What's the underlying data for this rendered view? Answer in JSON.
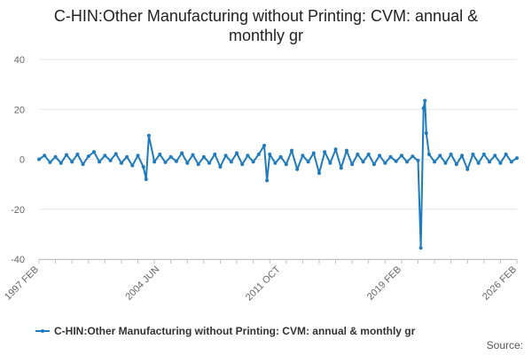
{
  "chart_data": {
    "type": "line",
    "title_lines": [
      "C-HIN:Other Manufacturing without Printing: CVM: annual &",
      "monthly gr"
    ],
    "x_start": "1997 FEB",
    "x_end": "2026 FEB",
    "x_tick_labels": [
      "1997 FEB",
      "2004 JUN",
      "2011 OCT",
      "2019 FEB",
      "2026 FEB"
    ],
    "y_ticks": [
      40,
      20,
      0,
      -20,
      -40
    ],
    "ylim": [
      -40,
      40
    ],
    "grid": true,
    "legend_position": "bottom-left",
    "series": [
      {
        "name": "C-HIN:Other Manufacturing without Printing: CVM: annual & monthly gr",
        "color": "#1f7bbd",
        "points": [
          [
            "1997 FEB",
            0
          ],
          [
            "1997 JUN",
            1.5
          ],
          [
            "1997 OCT",
            -1.2
          ],
          [
            "1998 FEB",
            1
          ],
          [
            "1998 JUN",
            -1.5
          ],
          [
            "1998 OCT",
            1.8
          ],
          [
            "1999 FEB",
            -1
          ],
          [
            "1999 JUN",
            2
          ],
          [
            "1999 OCT",
            -2
          ],
          [
            "2000 FEB",
            1.2
          ],
          [
            "2000 JUN",
            3
          ],
          [
            "2000 OCT",
            -1
          ],
          [
            "2001 FEB",
            1.5
          ],
          [
            "2001 JUN",
            -0.5
          ],
          [
            "2001 OCT",
            2.2
          ],
          [
            "2002 FEB",
            -1.5
          ],
          [
            "2002 JUN",
            1
          ],
          [
            "2002 OCT",
            -2.5
          ],
          [
            "2003 FEB",
            1.5
          ],
          [
            "2003 JUN",
            -3
          ],
          [
            "2003 AUG",
            -8
          ],
          [
            "2003 OCT",
            9.5
          ],
          [
            "2004 FEB",
            -1
          ],
          [
            "2004 JUN",
            2
          ],
          [
            "2004 OCT",
            -1.2
          ],
          [
            "2005 FEB",
            1
          ],
          [
            "2005 JUN",
            -0.8
          ],
          [
            "2005 OCT",
            2.5
          ],
          [
            "2006 FEB",
            -1.5
          ],
          [
            "2006 JUN",
            1.8
          ],
          [
            "2006 OCT",
            -2
          ],
          [
            "2007 FEB",
            1
          ],
          [
            "2007 JUN",
            -1.5
          ],
          [
            "2007 OCT",
            2
          ],
          [
            "2008 FEB",
            -3
          ],
          [
            "2008 JUN",
            1.5
          ],
          [
            "2008 OCT",
            -1
          ],
          [
            "2009 FEB",
            2.5
          ],
          [
            "2009 JUN",
            -2
          ],
          [
            "2009 OCT",
            1.5
          ],
          [
            "2010 FEB",
            -1
          ],
          [
            "2010 JUN",
            2
          ],
          [
            "2010 OCT",
            5.5
          ],
          [
            "2010 DEC",
            -8.5
          ],
          [
            "2011 FEB",
            2
          ],
          [
            "2011 JUN",
            -1.5
          ],
          [
            "2011 OCT",
            1
          ],
          [
            "2012 FEB",
            -2
          ],
          [
            "2012 JUN",
            3.5
          ],
          [
            "2012 OCT",
            -4
          ],
          [
            "2013 FEB",
            1.5
          ],
          [
            "2013 JUN",
            -1
          ],
          [
            "2013 OCT",
            2.5
          ],
          [
            "2014 FEB",
            -5.5
          ],
          [
            "2014 JUN",
            3
          ],
          [
            "2014 OCT",
            -1.5
          ],
          [
            "2015 FEB",
            4
          ],
          [
            "2015 JUN",
            -3.5
          ],
          [
            "2015 OCT",
            3.5
          ],
          [
            "2016 FEB",
            -2
          ],
          [
            "2016 JUN",
            2
          ],
          [
            "2016 OCT",
            -1
          ],
          [
            "2017 FEB",
            2
          ],
          [
            "2017 JUN",
            -2
          ],
          [
            "2017 OCT",
            1.5
          ],
          [
            "2018 FEB",
            -1.5
          ],
          [
            "2018 JUN",
            1
          ],
          [
            "2018 OCT",
            -0.8
          ],
          [
            "2019 FEB",
            1.5
          ],
          [
            "2019 JUN",
            -1
          ],
          [
            "2019 OCT",
            1.2
          ],
          [
            "2020 FEB",
            -0.5
          ],
          [
            "2020 APR",
            -35.5
          ],
          [
            "2020 JUN",
            20.5
          ],
          [
            "2020 JUL",
            23.5
          ],
          [
            "2020 AUG",
            10.5
          ],
          [
            "2020 OCT",
            2
          ],
          [
            "2021 FEB",
            -1
          ],
          [
            "2021 JUN",
            1.5
          ],
          [
            "2021 OCT",
            -1.5
          ],
          [
            "2022 FEB",
            2
          ],
          [
            "2022 JUN",
            -2
          ],
          [
            "2022 OCT",
            1.5
          ],
          [
            "2023 FEB",
            -4
          ],
          [
            "2023 JUN",
            2
          ],
          [
            "2023 OCT",
            -1.5
          ],
          [
            "2024 FEB",
            2
          ],
          [
            "2024 JUN",
            -1
          ],
          [
            "2024 OCT",
            1.5
          ],
          [
            "2025 FEB",
            -1.5
          ],
          [
            "2025 JUN",
            2
          ],
          [
            "2025 OCT",
            -1
          ],
          [
            "2026 FEB",
            0.5
          ]
        ]
      }
    ]
  },
  "legend_label": "C-HIN:Other Manufacturing without Printing: CVM: annual & monthly gr",
  "source_label": "Source:"
}
